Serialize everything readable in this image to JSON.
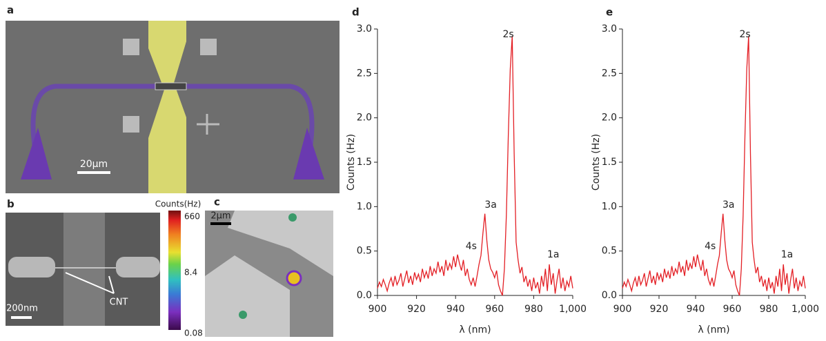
{
  "panels": {
    "a": {
      "label": "a",
      "scale": "20μm"
    },
    "b": {
      "label": "b",
      "scale": "200nm",
      "annotation": "CNT"
    },
    "colorbar": {
      "title": "Counts(Hz)",
      "ticks": [
        "660",
        "8.4",
        "0.08"
      ]
    },
    "c": {
      "label": "c",
      "scale": "2μm"
    }
  },
  "chart_data": [
    {
      "type": "line",
      "panel_label": "d",
      "x_label": "λ (nm)",
      "y_label": "Counts (Hz)",
      "annotations": [
        "2s",
        "3a",
        "4s",
        "1a"
      ],
      "x": [
        900,
        901,
        902,
        903,
        904,
        905,
        906,
        907,
        908,
        909,
        910,
        911,
        912,
        913,
        914,
        915,
        916,
        917,
        918,
        919,
        920,
        921,
        922,
        923,
        924,
        925,
        926,
        927,
        928,
        929,
        930,
        931,
        932,
        933,
        934,
        935,
        936,
        937,
        938,
        939,
        940,
        941,
        942,
        943,
        944,
        945,
        946,
        947,
        948,
        949,
        950,
        951,
        952,
        953,
        954,
        955,
        956,
        957,
        958,
        959,
        960,
        961,
        962,
        963,
        964,
        965,
        966,
        967,
        968,
        969,
        970,
        971,
        972,
        973,
        974,
        975,
        976,
        977,
        978,
        979,
        980,
        981,
        982,
        983,
        984,
        985,
        986,
        987,
        988,
        989,
        990,
        991,
        992,
        993,
        994,
        995,
        996,
        997,
        998,
        999,
        1000
      ],
      "series": [
        {
          "color": "#e31e24",
          "values": [
            0.08,
            0.15,
            0.1,
            0.18,
            0.12,
            0.05,
            0.14,
            0.2,
            0.1,
            0.22,
            0.12,
            0.17,
            0.25,
            0.1,
            0.19,
            0.28,
            0.14,
            0.22,
            0.12,
            0.26,
            0.18,
            0.24,
            0.15,
            0.3,
            0.2,
            0.27,
            0.19,
            0.33,
            0.22,
            0.3,
            0.25,
            0.38,
            0.26,
            0.33,
            0.22,
            0.4,
            0.28,
            0.36,
            0.3,
            0.44,
            0.32,
            0.46,
            0.36,
            0.28,
            0.4,
            0.22,
            0.3,
            0.18,
            0.12,
            0.2,
            0.1,
            0.22,
            0.35,
            0.45,
            0.7,
            0.92,
            0.62,
            0.4,
            0.3,
            0.26,
            0.2,
            0.28,
            0.12,
            0.05,
            0.0,
            0.3,
            0.9,
            1.8,
            2.55,
            2.92,
            1.6,
            0.6,
            0.4,
            0.25,
            0.32,
            0.15,
            0.22,
            0.1,
            0.18,
            0.05,
            0.2,
            0.08,
            0.15,
            0.02,
            0.22,
            0.1,
            0.3,
            0.05,
            0.35,
            0.12,
            0.25,
            0.02,
            0.18,
            0.3,
            0.08,
            0.2,
            0.05,
            0.16,
            0.1,
            0.22,
            0.08
          ]
        }
      ],
      "xlim": [
        900,
        1000
      ],
      "ylim": [
        0,
        3
      ],
      "xticks": [
        900,
        920,
        940,
        960,
        980,
        {
          "value": 1000,
          "label": "1,000"
        }
      ],
      "yticks": [
        {
          "value": 0,
          "label": "0.0"
        },
        {
          "value": 0.5,
          "label": "0.5"
        },
        {
          "value": 1,
          "label": "1.0"
        },
        {
          "value": 1.5,
          "label": "1.5"
        },
        {
          "value": 2,
          "label": "2.0"
        },
        {
          "value": 2.5,
          "label": "2.5"
        },
        {
          "value": 3,
          "label": "3.0"
        }
      ]
    },
    {
      "type": "line",
      "panel_label": "e",
      "x_label": "λ (nm)",
      "y_label": "Counts (Hz)",
      "annotations": [
        "2s",
        "3a",
        "4s",
        "1a"
      ],
      "x": [
        900,
        901,
        902,
        903,
        904,
        905,
        906,
        907,
        908,
        909,
        910,
        911,
        912,
        913,
        914,
        915,
        916,
        917,
        918,
        919,
        920,
        921,
        922,
        923,
        924,
        925,
        926,
        927,
        928,
        929,
        930,
        931,
        932,
        933,
        934,
        935,
        936,
        937,
        938,
        939,
        940,
        941,
        942,
        943,
        944,
        945,
        946,
        947,
        948,
        949,
        950,
        951,
        952,
        953,
        954,
        955,
        956,
        957,
        958,
        959,
        960,
        961,
        962,
        963,
        964,
        965,
        966,
        967,
        968,
        969,
        970,
        971,
        972,
        973,
        974,
        975,
        976,
        977,
        978,
        979,
        980,
        981,
        982,
        983,
        984,
        985,
        986,
        987,
        988,
        989,
        990,
        991,
        992,
        993,
        994,
        995,
        996,
        997,
        998,
        999,
        1000
      ],
      "series": [
        {
          "color": "#e31e24",
          "values": [
            0.08,
            0.15,
            0.1,
            0.18,
            0.12,
            0.05,
            0.14,
            0.2,
            0.1,
            0.22,
            0.12,
            0.17,
            0.25,
            0.1,
            0.19,
            0.28,
            0.14,
            0.22,
            0.12,
            0.26,
            0.18,
            0.24,
            0.15,
            0.3,
            0.2,
            0.27,
            0.19,
            0.33,
            0.22,
            0.3,
            0.25,
            0.38,
            0.26,
            0.33,
            0.22,
            0.4,
            0.28,
            0.36,
            0.3,
            0.44,
            0.32,
            0.46,
            0.36,
            0.28,
            0.4,
            0.22,
            0.3,
            0.18,
            0.12,
            0.2,
            0.1,
            0.22,
            0.35,
            0.45,
            0.7,
            0.92,
            0.62,
            0.4,
            0.3,
            0.26,
            0.2,
            0.28,
            0.12,
            0.05,
            0.0,
            0.3,
            0.9,
            1.8,
            2.55,
            2.92,
            1.6,
            0.6,
            0.4,
            0.25,
            0.32,
            0.15,
            0.22,
            0.1,
            0.18,
            0.05,
            0.2,
            0.08,
            0.15,
            0.02,
            0.22,
            0.1,
            0.3,
            0.05,
            0.35,
            0.12,
            0.25,
            0.02,
            0.18,
            0.3,
            0.08,
            0.2,
            0.05,
            0.16,
            0.1,
            0.22,
            0.08
          ]
        }
      ],
      "xlim": [
        900,
        1000
      ],
      "ylim": [
        0,
        3
      ],
      "xticks": [
        900,
        920,
        940,
        960,
        980,
        {
          "value": 1000,
          "label": "1,000"
        }
      ],
      "yticks": [
        {
          "value": 0,
          "label": "0.0"
        },
        {
          "value": 0.5,
          "label": "0.5"
        },
        {
          "value": 1,
          "label": "1.0"
        },
        {
          "value": 1.5,
          "label": "1.5"
        },
        {
          "value": 2,
          "label": "2.0"
        },
        {
          "value": 2.5,
          "label": "2.5"
        },
        {
          "value": 3,
          "label": "3.0"
        }
      ]
    }
  ]
}
